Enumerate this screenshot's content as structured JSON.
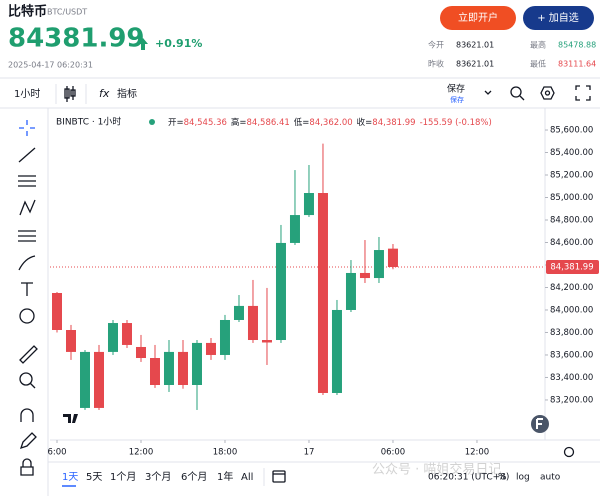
{
  "header": {
    "title": "比特币",
    "pair": "BTC/USDT",
    "buttons": [
      "立即开户",
      "+ 加自选"
    ],
    "price": "84381.99",
    "change": "+0.91%",
    "datetime": "2025-04-17 06:20:31",
    "stats": [
      {
        "label": "今开",
        "value": "83621.01"
      },
      {
        "label": "最高",
        "value": "85478.88"
      },
      {
        "label": "昨收",
        "value": "83621.01"
      },
      {
        "label": "最低",
        "value": "83111.64"
      }
    ]
  },
  "toolbar": {
    "interval": "1小时",
    "indicator_icon": "fx",
    "indicators": "指标",
    "save": "保存",
    "save_sub": "保存"
  },
  "chart_data": {
    "type": "candlestick",
    "title": "BINBTC · 1小时",
    "ohlc_legend": [
      {
        "label": "开=",
        "value": "84,545.36"
      },
      {
        "label": "高=",
        "value": "84,586.41"
      },
      {
        "label": "低=",
        "value": "84,362.00"
      },
      {
        "label": "收=",
        "value": "84,381.99"
      }
    ],
    "change_label": "-155.59 (-0.18%)",
    "x": [
      0,
      1,
      2,
      3,
      4,
      5,
      6,
      7,
      8,
      9,
      10,
      11,
      12,
      13,
      14,
      15,
      16,
      17,
      18,
      19,
      20,
      21,
      22,
      23,
      24
    ],
    "open": [
      84151,
      83822,
      83129,
      83627,
      83627,
      83884,
      83671,
      83573,
      83333,
      83627,
      83333,
      83707,
      83600,
      83911,
      84036,
      83733,
      83733,
      84596,
      84844,
      85040,
      83262,
      84000,
      84329,
      84284,
      84545.36
    ],
    "high": [
      84160,
      83867,
      83644,
      83689,
      83911,
      83911,
      83778,
      83689,
      83733,
      83733,
      83733,
      83751,
      83956,
      84133,
      84267,
      84196,
      84756,
      85244,
      85289,
      85478.88,
      84089,
      84444,
      84622,
      84649,
      84586.41
    ],
    "low": [
      83800,
      83556,
      83111.64,
      83111,
      83600,
      83662,
      83538,
      83307,
      83271,
      83300,
      83111,
      83556,
      83556,
      83893,
      83707,
      83511,
      83707,
      84578,
      84827,
      83244,
      83244,
      83982,
      84240,
      84240,
      84362
    ],
    "close": [
      83822,
      83627,
      83627,
      83129,
      83884,
      83689,
      83573,
      83333,
      83627,
      83333,
      83707,
      83600,
      83911,
      84036,
      83733,
      83711,
      84596,
      84844,
      85040,
      83262,
      84000,
      84329,
      84284,
      84533,
      84381.99
    ],
    "up_color": "#26a17b",
    "down_color": "#e5484d",
    "xlim": [
      -0.5,
      34.86
    ],
    "xticks": [
      {
        "value": 0,
        "label": "6:00"
      },
      {
        "value": 6,
        "label": "12:00"
      },
      {
        "value": 12,
        "label": "18:00"
      },
      {
        "value": 18,
        "label": "17"
      },
      {
        "value": 24,
        "label": "06:00"
      },
      {
        "value": 30,
        "label": "12:00"
      }
    ],
    "ylim": [
      82844,
      85778
    ],
    "yticks": [
      {
        "value": 85600,
        "label": "85,600.00"
      },
      {
        "value": 85400,
        "label": "85,400.00"
      },
      {
        "value": 85200,
        "label": "85,200.00"
      },
      {
        "value": 85000,
        "label": "85,000.00"
      },
      {
        "value": 84800,
        "label": "84,800.00"
      },
      {
        "value": 84600,
        "label": "84,600.00"
      },
      {
        "value": 84400,
        "label": "84,400.00"
      },
      {
        "value": 84200,
        "label": "84,200.00"
      },
      {
        "value": 84000,
        "label": "84,000.00"
      },
      {
        "value": 83800,
        "label": "83,800.00"
      },
      {
        "value": 83600,
        "label": "83,600.00"
      },
      {
        "value": 83400,
        "label": "83,400.00"
      },
      {
        "value": 83200,
        "label": "83,200.00"
      }
    ],
    "last_price": {
      "value": 84381.99,
      "label": "84,381.99"
    },
    "grid": false
  },
  "footer": {
    "ranges": [
      "1天",
      "5天",
      "1个月",
      "3个月",
      "6个月",
      "1年",
      "All"
    ],
    "time": "06:20:31 (UTC+8)",
    "options": [
      "%",
      "log",
      "auto"
    ],
    "watermark": "公众号 · 喵姐交易日记"
  }
}
